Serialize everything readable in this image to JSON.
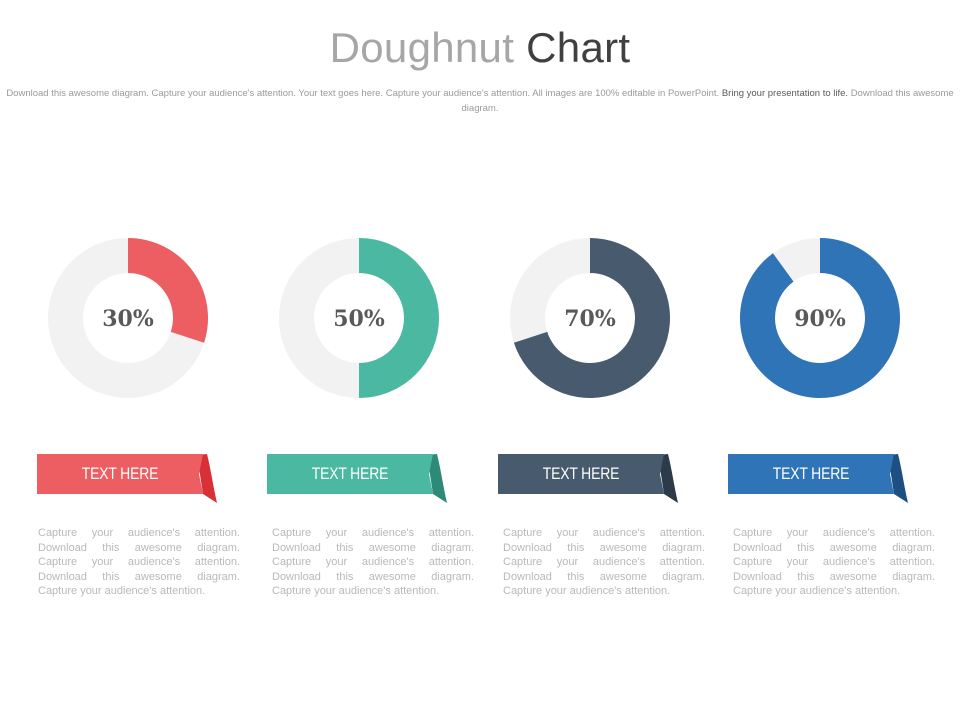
{
  "header": {
    "title_light": "Doughnut",
    "title_dark": "Chart",
    "subtitle_light": "Download this awesome diagram. Capture your audience's attention. Your text goes here. Capture your audience's attention. All images are 100% editable in PowerPoint.",
    "subtitle_dark": "Bring your presentation to life.",
    "subtitle_end": "Download this awesome diagram."
  },
  "chart_data": [
    {
      "type": "pie",
      "variant": "doughnut",
      "value": 30,
      "label": "30%",
      "color": "#ec5e62",
      "track_color": "#f2f2f2"
    },
    {
      "type": "pie",
      "variant": "doughnut",
      "value": 50,
      "label": "50%",
      "color": "#4bb8a1",
      "track_color": "#f2f2f2"
    },
    {
      "type": "pie",
      "variant": "doughnut",
      "value": 70,
      "label": "70%",
      "color": "#485a6d",
      "track_color": "#f2f2f2"
    },
    {
      "type": "pie",
      "variant": "doughnut",
      "value": 90,
      "label": "90%",
      "color": "#2f74b7",
      "track_color": "#f2f2f2"
    }
  ],
  "cards": [
    {
      "ribbon_label": "TEXT HERE",
      "ribbon_color": "#ec5e62",
      "fold_color": "#d92f36",
      "description": "Capture your audience's attention. Download this awesome diagram. Capture your audience's attention. Download this awesome diagram. Capture your audience's attention."
    },
    {
      "ribbon_label": "TEXT HERE",
      "ribbon_color": "#4bb8a1",
      "fold_color": "#2e8a78",
      "description": "Capture your audience's attention. Download this awesome diagram. Capture your audience's attention. Download this awesome diagram. Capture your audience's attention."
    },
    {
      "ribbon_label": "TEXT HERE",
      "ribbon_color": "#485a6d",
      "fold_color": "#2c3a49",
      "description": "Capture your audience's attention. Download this awesome diagram. Capture your audience's attention. Download this awesome diagram. Capture your audience's attention."
    },
    {
      "ribbon_label": "TEXT HERE",
      "ribbon_color": "#2f74b7",
      "fold_color": "#1d4f82",
      "description": "Capture your audience's attention. Download this awesome diagram. Capture your audience's attention. Download this awesome diagram. Capture your audience's attention."
    }
  ]
}
